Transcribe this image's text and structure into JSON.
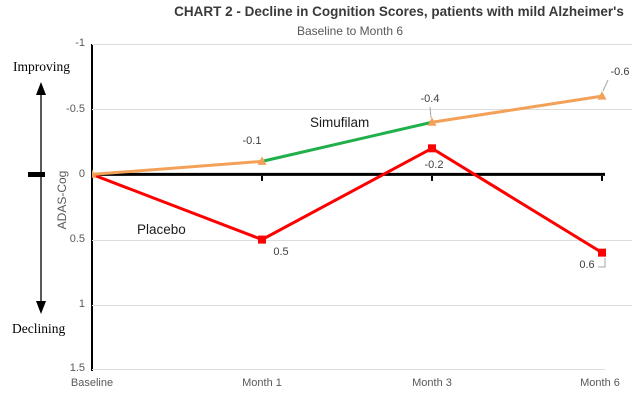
{
  "chart_data": {
    "type": "line",
    "title": "CHART 2 - Decline in Cognition Scores, patients with mild Alzheimer's",
    "subtitle": "Baseline to Month 6",
    "ylabel": "ADAS-Cog",
    "categories": [
      "Baseline",
      "Month 1",
      "Month 3",
      "Month 6"
    ],
    "y_ticks": [
      "-1",
      "-0.5",
      "0",
      "0.5",
      "1",
      "1.5"
    ],
    "y_axis": {
      "min": -1,
      "max": 1.5,
      "inverted": true
    },
    "grid": true,
    "legend": "inline-labels",
    "series": [
      {
        "name": "Simufilam",
        "values": [
          0,
          -0.1,
          -0.4,
          -0.6
        ],
        "point_labels": [
          "",
          "-0.1",
          "-0.4",
          "-0.6"
        ],
        "segment_colors": [
          "#F3A159",
          "#1FAF4B",
          "#F3A159"
        ],
        "marker": "triangle",
        "marker_color": "#F3A159"
      },
      {
        "name": "Placebo",
        "values": [
          0,
          0.5,
          -0.2,
          0.6
        ],
        "point_labels": [
          "",
          "0.5",
          "-0.2",
          "0.6"
        ],
        "color": "#FE0000",
        "marker": "square"
      }
    ],
    "annotations": {
      "improving": "Improving",
      "declining": "Declining"
    },
    "colors": {
      "zero_line": "#000000",
      "gridline": "#DCDCDC",
      "leader": "#A6A6A6",
      "axis_text": "#595959",
      "data_label": "#404040"
    }
  }
}
